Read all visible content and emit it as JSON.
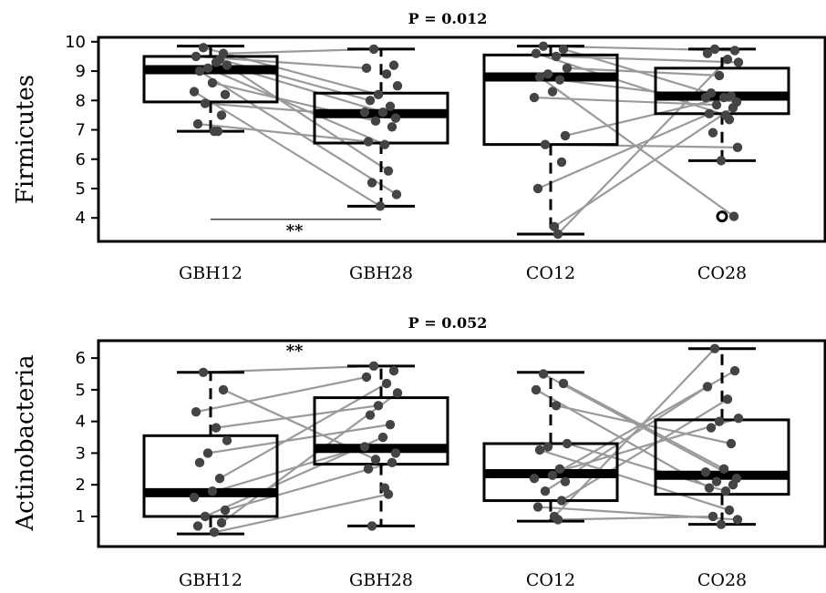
{
  "chart_data": [
    {
      "type": "boxplot",
      "title": "P = 0.012",
      "ylabel": "Firmicutes",
      "ylim": [
        3.2,
        10.15
      ],
      "yticks": [
        4,
        5,
        6,
        7,
        8,
        9,
        10
      ],
      "categories": [
        "GBH12",
        "GBH28",
        "CO12",
        "CO28"
      ],
      "boxes": [
        {
          "whisker_low": 6.95,
          "q1": 7.95,
          "median": 9.05,
          "q3": 9.5,
          "whisker_high": 9.85,
          "outliers": []
        },
        {
          "whisker_low": 4.4,
          "q1": 6.55,
          "median": 7.55,
          "q3": 8.25,
          "whisker_high": 9.75,
          "outliers": []
        },
        {
          "whisker_low": 3.45,
          "q1": 6.5,
          "median": 8.8,
          "q3": 9.55,
          "whisker_high": 9.85,
          "outliers": []
        },
        {
          "whisker_low": 5.95,
          "q1": 7.55,
          "median": 8.15,
          "q3": 9.1,
          "whisker_high": 9.75,
          "outliers": [
            4.05
          ]
        }
      ],
      "points": [
        [
          9.8,
          9.6,
          9.5,
          9.3,
          9.2,
          9.1,
          9.0,
          9.4,
          8.6,
          8.3,
          8.2,
          7.9,
          7.5,
          7.2,
          6.95,
          6.95
        ],
        [
          9.75,
          9.2,
          9.1,
          8.9,
          8.5,
          8.2,
          8.0,
          7.8,
          7.6,
          7.6,
          7.4,
          7.3,
          7.1,
          6.6,
          6.5,
          5.6,
          5.2,
          4.8,
          4.4
        ],
        [
          9.85,
          9.75,
          9.6,
          9.5,
          9.1,
          8.9,
          8.8,
          8.7,
          8.3,
          8.1,
          6.8,
          6.5,
          5.9,
          5.0,
          3.7,
          3.45
        ],
        [
          9.75,
          9.7,
          9.6,
          9.4,
          9.3,
          8.85,
          8.25,
          8.15,
          8.1,
          8.1,
          7.95,
          7.85,
          7.75,
          7.55,
          7.5,
          7.35,
          6.9,
          6.4,
          5.95,
          4.05
        ]
      ],
      "pairs": [
        [
          [
            9.8,
            8.2
          ],
          [
            9.6,
            9.75
          ],
          [
            9.5,
            9.1
          ],
          [
            9.3,
            7.6
          ],
          [
            9.2,
            5.6
          ],
          [
            9.1,
            6.5
          ],
          [
            9.0,
            4.8
          ],
          [
            9.4,
            8.0
          ],
          [
            8.6,
            7.3
          ],
          [
            8.3,
            4.4
          ],
          [
            7.9,
            7.4
          ],
          [
            7.2,
            6.6
          ]
        ],
        [
          [
            9.85,
            9.7
          ],
          [
            9.75,
            8.1
          ],
          [
            9.6,
            7.5
          ],
          [
            9.5,
            9.3
          ],
          [
            9.1,
            8.85
          ],
          [
            8.8,
            4.05
          ],
          [
            8.7,
            7.95
          ],
          [
            8.1,
            7.85
          ],
          [
            6.8,
            8.15
          ],
          [
            6.5,
            6.4
          ],
          [
            5.0,
            7.55
          ],
          [
            3.7,
            7.75
          ],
          [
            3.45,
            9.4
          ]
        ]
      ],
      "annotation": {
        "text": "**",
        "bracket_y": 3.95
      }
    },
    {
      "type": "boxplot",
      "title": "P = 0.052",
      "ylabel": "Actinobacteria",
      "ylim": [
        0.05,
        6.55
      ],
      "yticks": [
        1,
        2,
        3,
        4,
        5,
        6
      ],
      "categories": [
        "GBH12",
        "GBH28",
        "CO12",
        "CO28"
      ],
      "boxes": [
        {
          "whisker_low": 0.45,
          "q1": 1.0,
          "median": 1.75,
          "q3": 3.55,
          "whisker_high": 5.55,
          "outliers": []
        },
        {
          "whisker_low": 0.7,
          "q1": 2.65,
          "median": 3.15,
          "q3": 4.75,
          "whisker_high": 5.75,
          "outliers": []
        },
        {
          "whisker_low": 0.85,
          "q1": 1.5,
          "median": 2.35,
          "q3": 3.3,
          "whisker_high": 5.55,
          "outliers": []
        },
        {
          "whisker_low": 0.75,
          "q1": 1.7,
          "median": 2.3,
          "q3": 4.05,
          "whisker_high": 6.3,
          "outliers": []
        }
      ],
      "points": [
        [
          5.55,
          5.0,
          4.3,
          3.8,
          3.4,
          3.0,
          2.7,
          2.2,
          1.8,
          1.6,
          1.2,
          1.0,
          0.8,
          0.7,
          0.5
        ],
        [
          5.75,
          5.6,
          5.4,
          5.2,
          4.9,
          4.5,
          4.2,
          3.9,
          3.5,
          3.2,
          3.0,
          2.8,
          2.7,
          2.5,
          1.9,
          1.7,
          0.7
        ],
        [
          5.5,
          5.2,
          5.0,
          4.5,
          3.3,
          3.2,
          3.1,
          2.5,
          2.3,
          2.2,
          2.1,
          1.8,
          1.5,
          1.3,
          1.0,
          0.9
        ],
        [
          6.3,
          5.6,
          5.1,
          4.7,
          4.1,
          4.0,
          3.8,
          3.3,
          2.5,
          2.4,
          2.2,
          2.1,
          2.0,
          1.9,
          1.8,
          1.2,
          1.0,
          0.9,
          0.75
        ]
      ],
      "pairs": [
        [
          [
            5.55,
            5.75
          ],
          [
            5.0,
            2.8
          ],
          [
            4.3,
            5.4
          ],
          [
            3.8,
            4.5
          ],
          [
            3.0,
            3.9
          ],
          [
            2.2,
            5.2
          ],
          [
            1.6,
            3.2
          ],
          [
            1.2,
            2.7
          ],
          [
            0.8,
            4.9
          ],
          [
            0.5,
            1.7
          ],
          [
            1.0,
            3.5
          ]
        ],
        [
          [
            5.5,
            2.2
          ],
          [
            5.2,
            2.5
          ],
          [
            5.0,
            1.9
          ],
          [
            4.5,
            3.3
          ],
          [
            3.3,
            1.8
          ],
          [
            3.1,
            1.2
          ],
          [
            2.3,
            5.6
          ],
          [
            2.2,
            4.1
          ],
          [
            1.8,
            5.1
          ],
          [
            1.5,
            4.7
          ],
          [
            1.0,
            6.3
          ],
          [
            0.9,
            1.0
          ],
          [
            1.3,
            0.9
          ]
        ]
      ],
      "annotation": {
        "text": "**"
      }
    }
  ]
}
